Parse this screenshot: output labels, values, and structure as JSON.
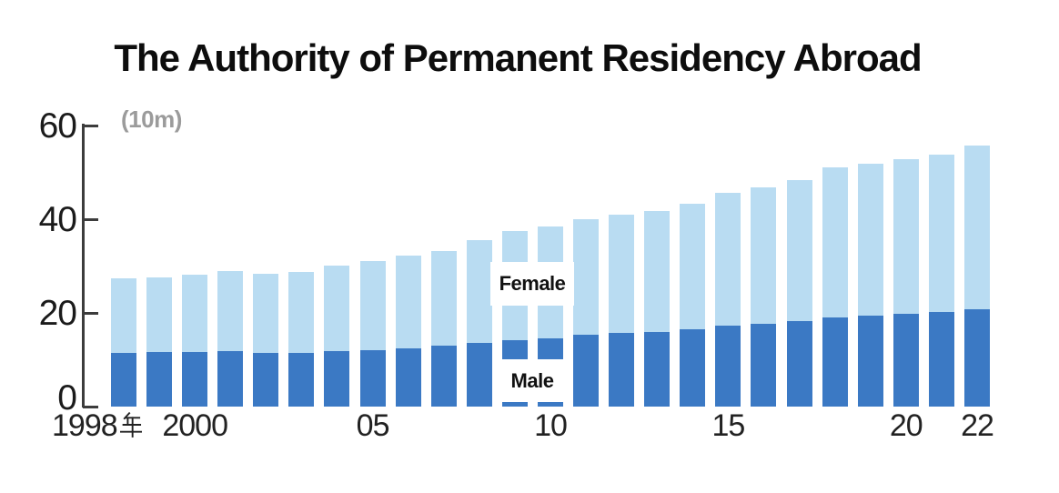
{
  "title": "The Authority of Permanent Residency Abroad",
  "unit_label": "(10m)",
  "legend": {
    "female": "Female",
    "male": "Male"
  },
  "y_axis": {
    "ticks": [
      "60",
      "40",
      "20",
      "0"
    ],
    "values": [
      60,
      40,
      20,
      0
    ]
  },
  "x_axis": {
    "ticks": [
      {
        "label": "1998年",
        "year": 1998
      },
      {
        "label": "2000",
        "year": 2000
      },
      {
        "label": "05",
        "year": 2005
      },
      {
        "label": "10",
        "year": 2010
      },
      {
        "label": "15",
        "year": 2015
      },
      {
        "label": "20",
        "year": 2020
      },
      {
        "label": "22",
        "year": 2022
      }
    ]
  },
  "colors": {
    "male_bar": "#3b79c4",
    "female_bar": "#b9dcf2",
    "axis": "#3c3c3c",
    "title_text": "#0d0d0d",
    "unit_text": "#9b9b9b",
    "label_box_bg": "#ffffff",
    "label_box_text": "#111111"
  },
  "chart_data": {
    "type": "bar",
    "stacked": true,
    "title": "The Authority of Permanent Residency Abroad",
    "ylabel": "(10m)",
    "ylim": [
      0,
      60
    ],
    "grid": false,
    "legend_position": "on-bars",
    "x": [
      1998,
      1999,
      2000,
      2001,
      2002,
      2003,
      2004,
      2005,
      2006,
      2007,
      2008,
      2009,
      2010,
      2011,
      2012,
      2013,
      2014,
      2015,
      2016,
      2017,
      2018,
      2019,
      2020,
      2021,
      2022
    ],
    "xtick_labels": [
      "1998年",
      "2000",
      "05",
      "10",
      "15",
      "20",
      "22"
    ],
    "series": [
      {
        "name": "Male",
        "color": "#3b79c4",
        "values": [
          11.4,
          11.6,
          11.7,
          11.9,
          11.4,
          11.5,
          11.9,
          12.0,
          12.4,
          13.0,
          13.5,
          14.1,
          14.5,
          15.4,
          15.8,
          16.0,
          16.6,
          17.3,
          17.6,
          18.2,
          19.0,
          19.4,
          19.8,
          20.1,
          20.7
        ]
      },
      {
        "name": "Female",
        "color": "#b9dcf2",
        "values": [
          15.9,
          16.0,
          16.4,
          17.1,
          16.9,
          17.2,
          18.2,
          19.0,
          19.9,
          20.3,
          22.1,
          23.4,
          23.9,
          24.6,
          25.2,
          25.8,
          26.7,
          28.4,
          29.2,
          30.2,
          32.0,
          32.4,
          33.1,
          33.6,
          35.0
        ]
      }
    ],
    "totals": [
      27.3,
      27.6,
      28.1,
      29.0,
      28.3,
      28.7,
      30.1,
      31.0,
      32.3,
      33.3,
      35.6,
      37.5,
      38.4,
      40.0,
      41.0,
      41.8,
      43.3,
      45.7,
      46.8,
      48.4,
      51.0,
      51.8,
      52.9,
      53.7,
      55.7
    ]
  }
}
